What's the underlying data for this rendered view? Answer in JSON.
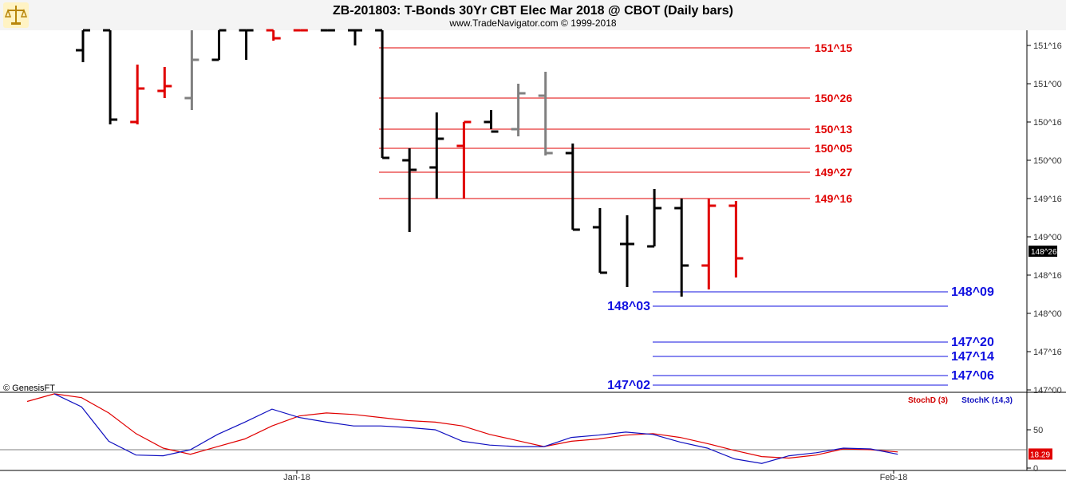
{
  "header": {
    "title": "ZB-201803:  T-Bonds 30Yr CBT Elec Mar 2018 @ CBOT  (Daily bars)",
    "subtitle": "www.TradeNavigator.com © 1999-2018"
  },
  "logo_icon": "scales-of-justice-icon",
  "credit": "© GenesisFT",
  "colors": {
    "up_bar": "#e00000",
    "down_bar": "#000000",
    "neutral_bar": "#808080",
    "resistance": "#e00000",
    "support": "#1010e0",
    "stoch_d": "#e00000",
    "stoch_k": "#1010c0",
    "badge_current": "#000000",
    "badge_stoch": "#e00000"
  },
  "chart_data": [
    {
      "type": "ohlc",
      "y_unit": "32nds",
      "ylim": [
        4700,
        4850
      ],
      "yticks": [
        {
          "label": "147^00",
          "value": 4704
        },
        {
          "label": "147^16",
          "value": 4720
        },
        {
          "label": "148^00",
          "value": 4736
        },
        {
          "label": "148^16",
          "value": 4752
        },
        {
          "label": "149^00",
          "value": 4768
        },
        {
          "label": "149^16",
          "value": 4784
        },
        {
          "label": "150^00",
          "value": 4800
        },
        {
          "label": "150^16",
          "value": 4816
        },
        {
          "label": "151^00",
          "value": 4832
        },
        {
          "label": "151^16",
          "value": 4848
        }
      ],
      "current_price": {
        "label": "148^26",
        "value": 4762
      },
      "bars": [
        {
          "o": 4846,
          "h": 4855,
          "l": 4841,
          "c": 4855,
          "color": "black"
        },
        {
          "o": 4855,
          "h": 4855,
          "l": 4815,
          "c": 4817,
          "color": "black"
        },
        {
          "o": 4816,
          "h": 4840,
          "l": 4815,
          "c": 4830,
          "color": "red"
        },
        {
          "o": 4829,
          "h": 4839,
          "l": 4826,
          "c": 4831,
          "color": "red"
        },
        {
          "o": 4826,
          "h": 4855,
          "l": 4821,
          "c": 4842,
          "color": "gray"
        },
        {
          "o": 4842,
          "h": 4855,
          "l": 4842,
          "c": 4855,
          "color": "black"
        },
        {
          "o": 4855,
          "h": 4855,
          "l": 4842,
          "c": 4855,
          "color": "black"
        },
        {
          "o": 4855,
          "h": 4855,
          "l": 4850,
          "c": 4851,
          "color": "red"
        },
        {
          "o": 4855,
          "h": 4855,
          "l": 4854,
          "c": 4855,
          "color": "red"
        },
        {
          "o": 4855,
          "h": 4855,
          "l": 4854,
          "c": 4855,
          "color": "black"
        },
        {
          "o": 4855,
          "h": 4855,
          "l": 4848,
          "c": 4855,
          "color": "black"
        },
        {
          "o": 4855,
          "h": 4855,
          "l": 4801,
          "c": 4801,
          "color": "black"
        },
        {
          "o": 4800,
          "h": 4805,
          "l": 4770,
          "c": 4796,
          "color": "black"
        },
        {
          "o": 4797,
          "h": 4820,
          "l": 4784,
          "c": 4809,
          "color": "black"
        },
        {
          "o": 4806,
          "h": 4816,
          "l": 4784,
          "c": 4816,
          "color": "red"
        },
        {
          "o": 4816,
          "h": 4821,
          "l": 4813,
          "c": 4812,
          "color": "black"
        },
        {
          "o": 4813,
          "h": 4832,
          "l": 4810,
          "c": 4828,
          "color": "gray"
        },
        {
          "o": 4827,
          "h": 4837,
          "l": 4802,
          "c": 4803,
          "color": "gray"
        },
        {
          "o": 4803,
          "h": 4807,
          "l": 4771,
          "c": 4771,
          "color": "black"
        },
        {
          "o": 4772,
          "h": 4780,
          "l": 4753,
          "c": 4753,
          "color": "black"
        },
        {
          "o": 4765,
          "h": 4777,
          "l": 4747,
          "c": 4765,
          "color": "black"
        },
        {
          "o": 4764,
          "h": 4788,
          "l": 4764,
          "c": 4780,
          "color": "black"
        },
        {
          "o": 4780,
          "h": 4784,
          "l": 4743,
          "c": 4756,
          "color": "black"
        },
        {
          "o": 4756,
          "h": 4784,
          "l": 4746,
          "c": 4781,
          "color": "red"
        },
        {
          "o": 4781,
          "h": 4783,
          "l": 4751,
          "c": 4759,
          "color": "red"
        }
      ],
      "levels": [
        {
          "label": "151^15",
          "value": 4847,
          "color": "red"
        },
        {
          "label": "150^26",
          "value": 4826,
          "color": "red"
        },
        {
          "label": "150^13",
          "value": 4813,
          "color": "red"
        },
        {
          "label": "150^05",
          "value": 4805,
          "color": "red"
        },
        {
          "label": "149^27",
          "value": 4795,
          "color": "red"
        },
        {
          "label": "149^16",
          "value": 4784,
          "color": "red"
        },
        {
          "label": "148^09",
          "value": 4745,
          "color": "blue"
        },
        {
          "label": "148^03",
          "value": 4739,
          "color": "blue"
        },
        {
          "label": "147^20",
          "value": 4724,
          "color": "blue"
        },
        {
          "label": "147^14",
          "value": 4718,
          "color": "blue"
        },
        {
          "label": "147^06",
          "value": 4710,
          "color": "blue"
        },
        {
          "label": "147^02",
          "value": 4706,
          "color": "blue"
        }
      ]
    },
    {
      "type": "line",
      "ylim": [
        0,
        100
      ],
      "yticks": [
        {
          "label": "50",
          "value": 50
        },
        {
          "label": "0",
          "value": 0
        }
      ],
      "series": [
        {
          "name": "StochD (3)",
          "values": [
            87,
            97,
            92,
            72,
            45,
            26,
            18,
            28,
            38,
            55,
            68,
            72,
            70,
            66,
            62,
            60,
            55,
            44,
            36,
            28,
            35,
            38,
            43,
            45,
            40,
            32,
            23,
            15,
            13,
            17,
            25,
            24,
            21
          ]
        },
        {
          "name": "StochK (14,3)",
          "values": [
            null,
            97,
            80,
            35,
            17,
            16,
            24,
            44,
            60,
            77,
            66,
            60,
            55,
            55,
            53,
            50,
            35,
            30,
            28,
            28,
            40,
            43,
            47,
            44,
            34,
            26,
            12,
            6,
            16,
            20,
            26,
            25,
            18
          ]
        }
      ],
      "current_value": {
        "label": "18.29",
        "value": 18.29
      }
    }
  ],
  "x_axis": {
    "labels": [
      "Jan-18",
      "Feb-18"
    ]
  }
}
